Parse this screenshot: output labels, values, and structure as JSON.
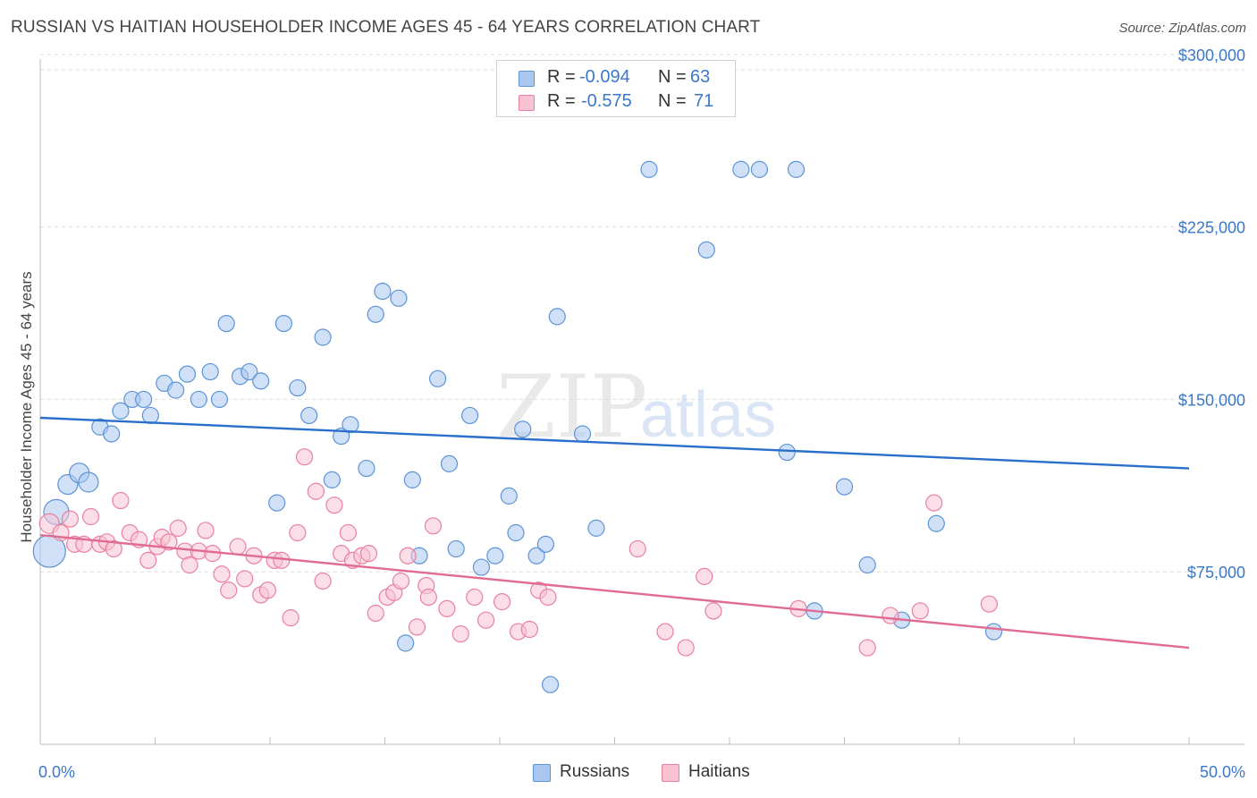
{
  "title": "RUSSIAN VS HAITIAN HOUSEHOLDER INCOME AGES 45 - 64 YEARS CORRELATION CHART",
  "source": "Source: ZipAtlas.com",
  "watermark": {
    "zip": "ZIP",
    "atlas": "atlas"
  },
  "legend": {
    "r_label": "R =",
    "n_label": "N =",
    "rows": [
      {
        "r": "-0.094",
        "n": "63",
        "color": "#a9c8f0",
        "border": "#5d93d6"
      },
      {
        "r": "-0.575",
        "n": "71",
        "color": "#f7c3d3",
        "border": "#e9819f"
      }
    ]
  },
  "bottom_legend": [
    {
      "label": "Russians",
      "color": "#a9c8f0",
      "border": "#5d93d6"
    },
    {
      "label": "Haitians",
      "color": "#f7c3d3",
      "border": "#e9819f"
    }
  ],
  "chart_data": {
    "type": "scatter",
    "title": "RUSSIAN VS HAITIAN HOUSEHOLDER INCOME AGES 45 - 64 YEARS CORRELATION CHART",
    "xlabel": "",
    "ylabel": "Householder Income Ages 45 - 64 years",
    "xlim": [
      0,
      50
    ],
    "ylim": [
      0,
      305000
    ],
    "x_tick_labels": [
      "0.0%",
      "50.0%"
    ],
    "y_ticks": [
      75000,
      150000,
      225000,
      300000
    ],
    "y_tick_labels": [
      "$75,000",
      "$150,000",
      "$225,000",
      "$300,000"
    ],
    "grid": true,
    "series": [
      {
        "name": "Russians",
        "color": "#a9c8f0",
        "stroke": "#5d93d6",
        "trend_color": "#2a6fcb",
        "trend": [
          [
            0,
            142000
          ],
          [
            50,
            120000
          ]
        ],
        "points": [
          [
            0.4,
            84000,
            18
          ],
          [
            0.7,
            101000,
            14
          ],
          [
            1.2,
            113000,
            11
          ],
          [
            1.7,
            118000,
            11
          ],
          [
            2.1,
            114000,
            11
          ],
          [
            2.6,
            138000,
            9
          ],
          [
            3.1,
            135000,
            9
          ],
          [
            3.5,
            145000,
            9
          ],
          [
            4.0,
            150000,
            9
          ],
          [
            4.5,
            150000,
            9
          ],
          [
            4.8,
            143000,
            9
          ],
          [
            5.4,
            157000,
            9
          ],
          [
            5.9,
            154000,
            9
          ],
          [
            6.4,
            161000,
            9
          ],
          [
            6.9,
            150000,
            9
          ],
          [
            7.4,
            162000,
            9
          ],
          [
            7.8,
            150000,
            9
          ],
          [
            8.1,
            183000,
            9
          ],
          [
            8.7,
            160000,
            9
          ],
          [
            9.1,
            162000,
            9
          ],
          [
            9.6,
            158000,
            9
          ],
          [
            10.3,
            105000,
            9
          ],
          [
            10.6,
            183000,
            9
          ],
          [
            11.2,
            155000,
            9
          ],
          [
            11.7,
            143000,
            9
          ],
          [
            12.3,
            177000,
            9
          ],
          [
            12.7,
            115000,
            9
          ],
          [
            13.1,
            134000,
            9
          ],
          [
            13.5,
            139000,
            9
          ],
          [
            14.2,
            120000,
            9
          ],
          [
            14.6,
            187000,
            9
          ],
          [
            14.9,
            197000,
            9
          ],
          [
            15.6,
            194000,
            9
          ],
          [
            15.9,
            44000,
            9
          ],
          [
            16.2,
            115000,
            9
          ],
          [
            16.5,
            82000,
            9
          ],
          [
            17.3,
            159000,
            9
          ],
          [
            17.8,
            122000,
            9
          ],
          [
            18.1,
            85000,
            9
          ],
          [
            18.7,
            143000,
            9
          ],
          [
            19.2,
            77000,
            9
          ],
          [
            19.8,
            82000,
            9
          ],
          [
            20.4,
            108000,
            9
          ],
          [
            20.7,
            92000,
            9
          ],
          [
            21.0,
            137000,
            9
          ],
          [
            21.6,
            82000,
            9
          ],
          [
            22.0,
            87000,
            9
          ],
          [
            22.2,
            26000,
            9
          ],
          [
            22.5,
            186000,
            9
          ],
          [
            23.6,
            135000,
            9
          ],
          [
            24.2,
            94000,
            9
          ],
          [
            26.5,
            250000,
            9
          ],
          [
            29.0,
            215000,
            9
          ],
          [
            30.5,
            250000,
            9
          ],
          [
            31.3,
            250000,
            9
          ],
          [
            32.5,
            127000,
            9
          ],
          [
            32.9,
            250000,
            9
          ],
          [
            33.7,
            58000,
            9
          ],
          [
            35.0,
            112000,
            9
          ],
          [
            36.0,
            78000,
            9
          ],
          [
            37.5,
            54000,
            9
          ],
          [
            39.0,
            96000,
            9
          ],
          [
            41.5,
            49000,
            9
          ]
        ]
      },
      {
        "name": "Haitians",
        "color": "#f7c3d3",
        "stroke": "#e9819f",
        "trend_color": "#e06b93",
        "trend": [
          [
            0,
            91000
          ],
          [
            50,
            42000
          ]
        ],
        "points": [
          [
            0.4,
            96000,
            11
          ],
          [
            0.9,
            92000,
            9
          ],
          [
            1.3,
            98000,
            9
          ],
          [
            1.5,
            87000,
            9
          ],
          [
            1.9,
            87000,
            9
          ],
          [
            2.2,
            99000,
            9
          ],
          [
            2.6,
            87000,
            9
          ],
          [
            2.9,
            88000,
            9
          ],
          [
            3.2,
            85000,
            9
          ],
          [
            3.5,
            106000,
            9
          ],
          [
            3.9,
            92000,
            9
          ],
          [
            4.3,
            89000,
            9
          ],
          [
            4.7,
            80000,
            9
          ],
          [
            5.1,
            86000,
            9
          ],
          [
            5.3,
            90000,
            9
          ],
          [
            5.6,
            88000,
            9
          ],
          [
            6.0,
            94000,
            9
          ],
          [
            6.3,
            84000,
            9
          ],
          [
            6.5,
            78000,
            9
          ],
          [
            6.9,
            84000,
            9
          ],
          [
            7.2,
            93000,
            9
          ],
          [
            7.5,
            83000,
            9
          ],
          [
            7.9,
            74000,
            9
          ],
          [
            8.2,
            67000,
            9
          ],
          [
            8.6,
            86000,
            9
          ],
          [
            8.9,
            72000,
            9
          ],
          [
            9.3,
            82000,
            9
          ],
          [
            9.6,
            65000,
            9
          ],
          [
            9.9,
            67000,
            9
          ],
          [
            10.2,
            80000,
            9
          ],
          [
            10.5,
            80000,
            9
          ],
          [
            10.9,
            55000,
            9
          ],
          [
            11.2,
            92000,
            9
          ],
          [
            11.5,
            125000,
            9
          ],
          [
            12.0,
            110000,
            9
          ],
          [
            12.3,
            71000,
            9
          ],
          [
            12.8,
            104000,
            9
          ],
          [
            13.1,
            83000,
            9
          ],
          [
            13.6,
            80000,
            9
          ],
          [
            14.0,
            82000,
            9
          ],
          [
            14.3,
            83000,
            9
          ],
          [
            14.6,
            57000,
            9
          ],
          [
            15.1,
            64000,
            9
          ],
          [
            15.4,
            66000,
            9
          ],
          [
            15.7,
            71000,
            9
          ],
          [
            16.0,
            82000,
            9
          ],
          [
            16.4,
            51000,
            9
          ],
          [
            16.8,
            69000,
            9
          ],
          [
            17.1,
            95000,
            9
          ],
          [
            17.7,
            59000,
            9
          ],
          [
            18.3,
            48000,
            9
          ],
          [
            18.9,
            64000,
            9
          ],
          [
            19.4,
            54000,
            9
          ],
          [
            20.1,
            62000,
            9
          ],
          [
            20.8,
            49000,
            9
          ],
          [
            21.3,
            50000,
            9
          ],
          [
            21.7,
            67000,
            9
          ],
          [
            22.1,
            64000,
            9
          ],
          [
            26.0,
            85000,
            9
          ],
          [
            27.2,
            49000,
            9
          ],
          [
            28.1,
            42000,
            9
          ],
          [
            28.9,
            73000,
            9
          ],
          [
            29.3,
            58000,
            9
          ],
          [
            33.0,
            59000,
            9
          ],
          [
            36.0,
            42000,
            9
          ],
          [
            37.0,
            56000,
            9
          ],
          [
            38.3,
            58000,
            9
          ],
          [
            38.9,
            105000,
            9
          ],
          [
            41.3,
            61000,
            9
          ],
          [
            16.9,
            64000,
            9
          ],
          [
            13.4,
            92000,
            9
          ]
        ]
      }
    ]
  }
}
